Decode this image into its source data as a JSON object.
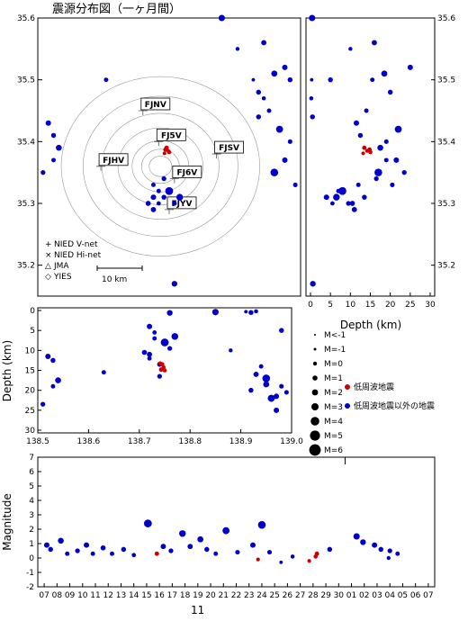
{
  "title": "震源分布図（一ヶ月間）",
  "colors": {
    "low_freq": "#cc0000",
    "other": "#0000cc",
    "axis": "#000000",
    "contour": "#888888"
  },
  "map": {
    "lon_range": [
      138.5,
      139.0
    ],
    "lat_range": [
      35.15,
      35.6
    ],
    "lat_ticks": [
      "35.6",
      "35.5",
      "35.4",
      "35.3",
      "35.2"
    ],
    "scale_label": "10 km",
    "stations": [
      {
        "name": "FJNV",
        "lon": 138.7,
        "lat": 35.45
      },
      {
        "name": "FJSV",
        "lon": 138.84,
        "lat": 35.38
      },
      {
        "name": "FJ5V",
        "lon": 138.73,
        "lat": 35.4
      },
      {
        "name": "FJHV",
        "lon": 138.62,
        "lat": 35.36
      },
      {
        "name": "FJ6V",
        "lon": 138.76,
        "lat": 35.34
      },
      {
        "name": "FJYV",
        "lon": 138.75,
        "lat": 35.29
      }
    ],
    "legend": [
      {
        "symbol": "+",
        "label": "NIED V-net"
      },
      {
        "symbol": "×",
        "label": "NIED Hi-net"
      },
      {
        "symbol": "△",
        "label": "JMA"
      },
      {
        "symbol": "◇",
        "label": "YIES"
      }
    ]
  },
  "depth_lat": {
    "x_label": "Depth (km)",
    "x_ticks": [
      "0",
      "5",
      "10",
      "15",
      "20",
      "25",
      "30"
    ],
    "y_ticks": [
      "35.6",
      "35.5",
      "35.4",
      "35.3",
      "35.2"
    ]
  },
  "lon_depth": {
    "y_label": "Depth (km)",
    "x_ticks": [
      "138.5",
      "138.6",
      "138.7",
      "138.8",
      "138.9",
      "139.0"
    ],
    "y_ticks": [
      "0",
      "5",
      "10",
      "15",
      "20",
      "25",
      "30"
    ]
  },
  "mag_legend": {
    "items": [
      "M<-1",
      "M=-1",
      "M=0",
      "M=1",
      "M=2",
      "M=3",
      "M=4",
      "M=5",
      "M=6"
    ],
    "low_freq_label": "低周波地震",
    "other_label": "低周波地震以外の地震"
  },
  "chart_data": {
    "type": "scatter",
    "magnitude_time": {
      "y_label": "Magnitude",
      "ylim": [
        -2,
        7
      ],
      "y_ticks": [
        "7",
        "6",
        "5",
        "4",
        "3",
        "2",
        "1",
        "0",
        "-1",
        "-2"
      ],
      "x_ticks": [
        "07",
        "08",
        "09",
        "10",
        "11",
        "12",
        "13",
        "14",
        "15",
        "16",
        "17",
        "18",
        "19",
        "20",
        "21",
        "22",
        "23",
        "24",
        "25",
        "26",
        "27",
        "28",
        "29",
        "30",
        "01",
        "02",
        "03",
        "04",
        "05",
        "06",
        "07"
      ],
      "month_label": "11"
    },
    "series": [
      {
        "name": "低周波地震",
        "points": [
          {
            "lon": 138.745,
            "lat": 35.39,
            "depth": 13.5,
            "day": 15.8,
            "mag": 0.3
          },
          {
            "lon": 138.748,
            "lat": 35.385,
            "depth": 14.2,
            "day": 23.7,
            "mag": -0.1
          },
          {
            "lon": 138.75,
            "lat": 35.383,
            "depth": 15.0,
            "day": 28.2,
            "mag": 0.1
          },
          {
            "lon": 138.743,
            "lat": 35.387,
            "depth": 14.8,
            "day": 28.3,
            "mag": 0.3
          },
          {
            "lon": 138.741,
            "lat": 35.381,
            "depth": 13.2,
            "day": 27.7,
            "mag": -0.2
          }
        ]
      },
      {
        "name": "低周波地震以外の地震",
        "points": [
          {
            "lon": 138.52,
            "lat": 35.43,
            "depth": 11.5,
            "day": 7.2,
            "mag": 0.9
          },
          {
            "lon": 138.53,
            "lat": 35.41,
            "depth": 12.5,
            "day": 7.5,
            "mag": 0.6
          },
          {
            "lon": 138.54,
            "lat": 35.39,
            "depth": 17.5,
            "day": 8.3,
            "mag": 1.2
          },
          {
            "lon": 138.53,
            "lat": 35.37,
            "depth": 19.0,
            "day": 8.8,
            "mag": 0.3
          },
          {
            "lon": 138.51,
            "lat": 35.35,
            "depth": 23.5,
            "day": 9.6,
            "mag": 0.5
          },
          {
            "lon": 138.72,
            "lat": 35.31,
            "depth": 4.0,
            "day": 10.3,
            "mag": 0.9
          },
          {
            "lon": 138.73,
            "lat": 35.32,
            "depth": 7.0,
            "day": 10.8,
            "mag": 0.3
          },
          {
            "lon": 138.71,
            "lat": 35.3,
            "depth": 10.5,
            "day": 11.6,
            "mag": 0.7
          },
          {
            "lon": 138.72,
            "lat": 35.33,
            "depth": 12.0,
            "day": 12.3,
            "mag": 0.3
          },
          {
            "lon": 138.74,
            "lat": 35.31,
            "depth": 13.5,
            "day": 13.2,
            "mag": 0.6
          },
          {
            "lon": 138.73,
            "lat": 35.3,
            "depth": 5.5,
            "day": 14.0,
            "mag": 0.2
          },
          {
            "lon": 138.75,
            "lat": 35.32,
            "depth": 8.0,
            "day": 15.1,
            "mag": 2.4
          },
          {
            "lon": 138.72,
            "lat": 35.29,
            "depth": 11.0,
            "day": 16.3,
            "mag": 0.8
          },
          {
            "lon": 138.76,
            "lat": 35.3,
            "depth": 9.5,
            "day": 16.9,
            "mag": 0.5
          },
          {
            "lon": 138.77,
            "lat": 35.31,
            "depth": 6.5,
            "day": 17.8,
            "mag": 1.7
          },
          {
            "lon": 138.93,
            "lat": 35.56,
            "depth": 16.0,
            "day": 18.4,
            "mag": 0.8
          },
          {
            "lon": 138.95,
            "lat": 35.51,
            "depth": 18.5,
            "day": 19.2,
            "mag": 1.3
          },
          {
            "lon": 138.92,
            "lat": 35.48,
            "depth": 20.0,
            "day": 19.7,
            "mag": 0.6
          },
          {
            "lon": 138.94,
            "lat": 35.45,
            "depth": 14.0,
            "day": 20.4,
            "mag": 0.3
          },
          {
            "lon": 138.96,
            "lat": 35.42,
            "depth": 22.0,
            "day": 21.2,
            "mag": 1.9
          },
          {
            "lon": 138.98,
            "lat": 35.4,
            "depth": 19.0,
            "day": 22.1,
            "mag": 0.4
          },
          {
            "lon": 138.97,
            "lat": 35.37,
            "depth": 21.5,
            "day": 23.3,
            "mag": 0.9
          },
          {
            "lon": 138.95,
            "lat": 35.35,
            "depth": 17.0,
            "day": 24.0,
            "mag": 2.3
          },
          {
            "lon": 138.99,
            "lat": 35.33,
            "depth": 20.5,
            "day": 24.6,
            "mag": 0.4
          },
          {
            "lon": 138.91,
            "lat": 35.5,
            "depth": 0.3,
            "day": 25.5,
            "mag": -0.3
          },
          {
            "lon": 138.93,
            "lat": 35.47,
            "depth": 0.2,
            "day": 26.4,
            "mag": 0.1
          },
          {
            "lon": 138.92,
            "lat": 35.44,
            "depth": 0.5,
            "day": 29.3,
            "mag": 0.6
          },
          {
            "lon": 138.85,
            "lat": 35.6,
            "depth": 0.4,
            "day": 31.4,
            "mag": 1.5
          },
          {
            "lon": 138.76,
            "lat": 35.17,
            "depth": 0.6,
            "day": 31.9,
            "mag": 1.1
          },
          {
            "lon": 138.97,
            "lat": 35.52,
            "depth": 25.0,
            "day": 32.8,
            "mag": 0.9
          },
          {
            "lon": 138.98,
            "lat": 35.5,
            "depth": 5.0,
            "day": 33.3,
            "mag": 0.6
          },
          {
            "lon": 138.74,
            "lat": 35.34,
            "depth": 16.5,
            "day": 34.0,
            "mag": 0.5
          },
          {
            "lon": 138.63,
            "lat": 35.5,
            "depth": 15.5,
            "day": 34.6,
            "mag": 0.3
          },
          {
            "lon": 138.88,
            "lat": 35.55,
            "depth": 10.0,
            "day": 33.9,
            "mag": 0.0
          }
        ]
      }
    ]
  }
}
